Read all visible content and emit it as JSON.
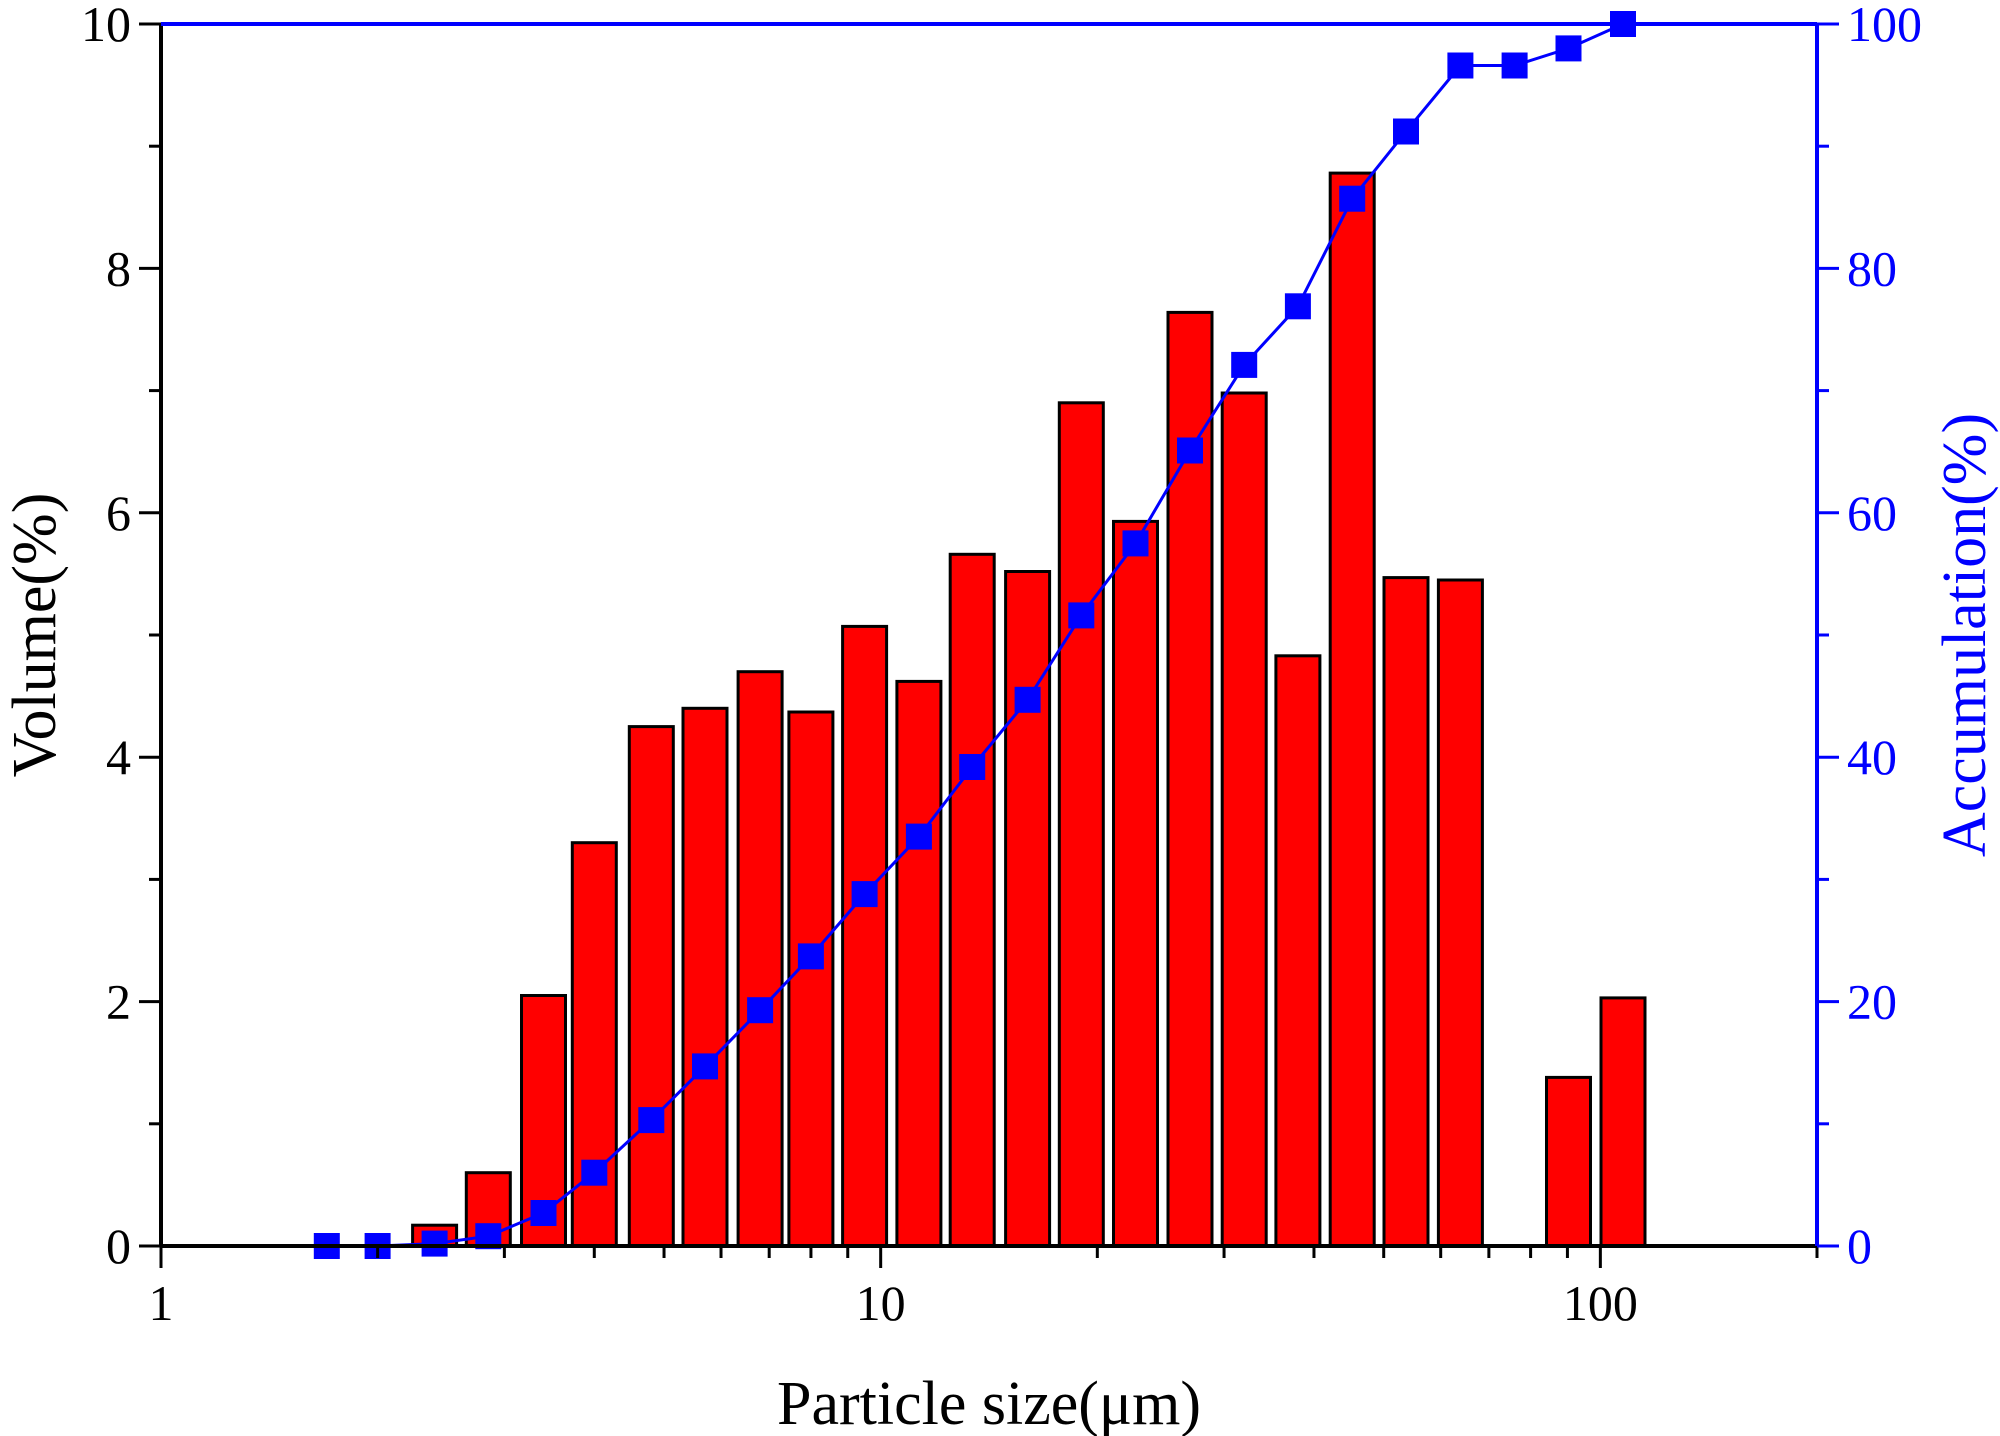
{
  "chart_data": {
    "type": "bar",
    "xlabel": "Particle size(μm)",
    "ylabel": "Volume(%)",
    "y2label": "Accumulation(%)",
    "xscale": "log",
    "xlim": [
      1,
      200
    ],
    "ylim": [
      0,
      10
    ],
    "y2lim": [
      0,
      100
    ],
    "x_ticks": [
      1,
      10,
      100
    ],
    "y_ticks": [
      0,
      2,
      4,
      6,
      8,
      10
    ],
    "y2_ticks": [
      0,
      20,
      40,
      60,
      80,
      100
    ],
    "bar_color": "#ff0000",
    "line_color": "#0000ff",
    "series": [
      {
        "name": "Volume",
        "axis": "left",
        "kind": "bar",
        "x": [
          2.4,
          2.85,
          3.4,
          4.0,
          4.8,
          5.7,
          6.8,
          8.0,
          9.5,
          11.3,
          13.4,
          16.0,
          19.0,
          22.6,
          26.9,
          32.0,
          38.0,
          45.2,
          53.7,
          63.9,
          90.3,
          107.5
        ],
        "values": [
          0.17,
          0.6,
          2.05,
          3.3,
          4.25,
          4.4,
          4.7,
          4.37,
          5.07,
          4.62,
          5.66,
          5.52,
          6.9,
          5.93,
          7.64,
          6.98,
          4.83,
          8.78,
          5.47,
          5.45,
          1.38,
          2.03
        ]
      },
      {
        "name": "Accumulation",
        "axis": "right",
        "kind": "line",
        "x": [
          1.7,
          2.0,
          2.4,
          2.85,
          3.4,
          4.0,
          4.8,
          5.7,
          6.8,
          8.0,
          9.5,
          11.3,
          13.4,
          16.0,
          19.0,
          22.6,
          26.9,
          32.0,
          38.0,
          45.2,
          53.7,
          63.9,
          76.0,
          90.3,
          107.5
        ],
        "values": [
          0,
          0,
          0.2,
          0.8,
          2.7,
          6.0,
          10.3,
          14.7,
          19.3,
          23.7,
          28.8,
          33.5,
          39.2,
          44.7,
          51.6,
          57.5,
          65.1,
          72.1,
          76.9,
          85.7,
          91.2,
          96.6,
          96.6,
          98.0,
          100
        ]
      }
    ]
  }
}
